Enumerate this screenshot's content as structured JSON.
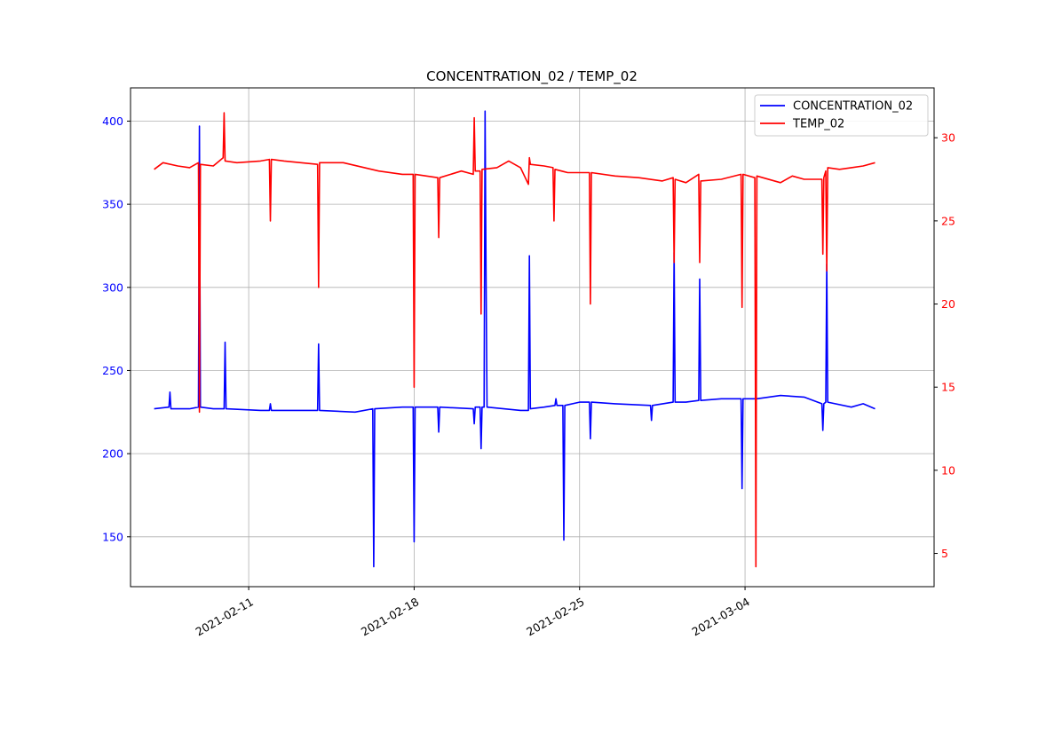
{
  "chart_data": {
    "type": "line",
    "title": "CONCENTRATION_02 / TEMP_02",
    "grid": true,
    "legend_position": "top-right",
    "x_axis": {
      "type": "date",
      "range": [
        "2021-02-06",
        "2021-03-12"
      ],
      "tick_labels": [
        "2021-02-11",
        "2021-02-18",
        "2021-02-25",
        "2021-03-04"
      ]
    },
    "y_left": {
      "range": [
        120,
        420
      ],
      "ticks": [
        150,
        200,
        250,
        300,
        350,
        400
      ],
      "tick_labels": [
        "150",
        "200",
        "250",
        "300",
        "350",
        "400"
      ],
      "color": "#0000ff"
    },
    "y_right": {
      "range": [
        3.0,
        33.0
      ],
      "ticks": [
        5,
        10,
        15,
        20,
        25,
        30
      ],
      "tick_labels": [
        "5",
        "10",
        "15",
        "20",
        "25",
        "30"
      ],
      "color": "#ff0000"
    },
    "series": [
      {
        "name": "CONCENTRATION_02",
        "axis": "left",
        "color": "#0000ff",
        "points": [
          [
            "2021-02-07 00:00",
            227
          ],
          [
            "2021-02-07 15:00",
            228
          ],
          [
            "2021-02-07 16:00",
            237
          ],
          [
            "2021-02-07 17:00",
            227
          ],
          [
            "2021-02-08 12:00",
            227
          ],
          [
            "2021-02-08 21:00",
            228
          ],
          [
            "2021-02-08 22:00",
            397
          ],
          [
            "2021-02-08 23:00",
            228
          ],
          [
            "2021-02-09 12:00",
            227
          ],
          [
            "2021-02-09 23:00",
            227
          ],
          [
            "2021-02-10 00:00",
            267
          ],
          [
            "2021-02-10 01:00",
            227
          ],
          [
            "2021-02-11 12:00",
            226
          ],
          [
            "2021-02-11 21:00",
            226
          ],
          [
            "2021-02-11 22:00",
            230
          ],
          [
            "2021-02-11 23:00",
            226
          ],
          [
            "2021-02-12 12:00",
            226
          ],
          [
            "2021-02-13 22:00",
            226
          ],
          [
            "2021-02-13 23:00",
            266
          ],
          [
            "2021-02-14 00:00",
            226
          ],
          [
            "2021-02-15 12:00",
            225
          ],
          [
            "2021-02-16 06:00",
            227
          ],
          [
            "2021-02-16 07:00",
            132
          ],
          [
            "2021-02-16 08:00",
            227
          ],
          [
            "2021-02-17 12:00",
            228
          ],
          [
            "2021-02-17 23:00",
            228
          ],
          [
            "2021-02-18 00:00",
            147
          ],
          [
            "2021-02-18 01:00",
            228
          ],
          [
            "2021-02-19 00:00",
            228
          ],
          [
            "2021-02-19 01:00",
            213
          ],
          [
            "2021-02-19 02:00",
            228
          ],
          [
            "2021-02-20 12:00",
            227
          ],
          [
            "2021-02-20 13:00",
            218
          ],
          [
            "2021-02-20 14:00",
            228
          ],
          [
            "2021-02-20 19:00",
            228
          ],
          [
            "2021-02-20 20:00",
            203
          ],
          [
            "2021-02-20 21:00",
            228
          ],
          [
            "2021-02-20 23:00",
            228
          ],
          [
            "2021-02-21 00:00",
            406
          ],
          [
            "2021-02-21 01:00",
            307
          ],
          [
            "2021-02-21 02:00",
            228
          ],
          [
            "2021-02-22 12:00",
            226
          ],
          [
            "2021-02-22 20:00",
            226
          ],
          [
            "2021-02-22 21:00",
            319
          ],
          [
            "2021-02-22 22:00",
            227
          ],
          [
            "2021-02-23 12:00",
            228
          ],
          [
            "2021-02-23 23:00",
            229
          ],
          [
            "2021-02-24 00:00",
            233
          ],
          [
            "2021-02-24 01:00",
            229
          ],
          [
            "2021-02-24 07:00",
            229
          ],
          [
            "2021-02-24 08:00",
            148
          ],
          [
            "2021-02-24 09:00",
            229
          ],
          [
            "2021-02-25 00:00",
            231
          ],
          [
            "2021-02-25 10:00",
            231
          ],
          [
            "2021-02-25 11:00",
            209
          ],
          [
            "2021-02-25 12:00",
            231
          ],
          [
            "2021-02-26 12:00",
            230
          ],
          [
            "2021-02-28 00:00",
            229
          ],
          [
            "2021-02-28 01:00",
            220
          ],
          [
            "2021-02-28 02:00",
            229
          ],
          [
            "2021-02-28 23:00",
            231
          ],
          [
            "2021-03-01 00:00",
            321
          ],
          [
            "2021-03-01 01:00",
            231
          ],
          [
            "2021-03-01 12:00",
            231
          ],
          [
            "2021-03-02 01:00",
            232
          ],
          [
            "2021-03-02 02:00",
            305
          ],
          [
            "2021-03-02 03:00",
            232
          ],
          [
            "2021-03-03 00:00",
            233
          ],
          [
            "2021-03-03 20:00",
            233
          ],
          [
            "2021-03-03 21:00",
            179
          ],
          [
            "2021-03-03 22:00",
            233
          ],
          [
            "2021-03-04 12:00",
            233
          ],
          [
            "2021-03-05 12:00",
            235
          ],
          [
            "2021-03-06 12:00",
            234
          ],
          [
            "2021-03-07 06:00",
            230
          ],
          [
            "2021-03-07 07:00",
            214
          ],
          [
            "2021-03-07 08:00",
            230
          ],
          [
            "2021-03-07 10:00",
            231
          ],
          [
            "2021-03-07 11:00",
            314
          ],
          [
            "2021-03-07 12:00",
            231
          ],
          [
            "2021-03-08 12:00",
            228
          ],
          [
            "2021-03-09 00:00",
            230
          ],
          [
            "2021-03-09 12:00",
            227
          ]
        ]
      },
      {
        "name": "TEMP_02",
        "axis": "right",
        "color": "#ff0000",
        "points": [
          [
            "2021-02-07 00:00",
            28.1
          ],
          [
            "2021-02-07 09:00",
            28.5
          ],
          [
            "2021-02-08 00:00",
            28.3
          ],
          [
            "2021-02-08 12:00",
            28.2
          ],
          [
            "2021-02-08 21:00",
            28.5
          ],
          [
            "2021-02-08 22:00",
            13.5
          ],
          [
            "2021-02-08 23:00",
            28.4
          ],
          [
            "2021-02-09 12:00",
            28.3
          ],
          [
            "2021-02-09 22:00",
            28.8
          ],
          [
            "2021-02-09 23:00",
            31.5
          ],
          [
            "2021-02-10 00:00",
            28.6
          ],
          [
            "2021-02-10 12:00",
            28.5
          ],
          [
            "2021-02-11 12:00",
            28.6
          ],
          [
            "2021-02-11 21:00",
            28.7
          ],
          [
            "2021-02-11 22:00",
            25.0
          ],
          [
            "2021-02-11 23:00",
            28.7
          ],
          [
            "2021-02-12 12:00",
            28.6
          ],
          [
            "2021-02-13 22:00",
            28.4
          ],
          [
            "2021-02-13 23:00",
            21.0
          ],
          [
            "2021-02-14 00:00",
            28.5
          ],
          [
            "2021-02-15 00:00",
            28.5
          ],
          [
            "2021-02-16 12:00",
            28.0
          ],
          [
            "2021-02-17 12:00",
            27.8
          ],
          [
            "2021-02-17 23:00",
            27.8
          ],
          [
            "2021-02-18 00:00",
            15.0
          ],
          [
            "2021-02-18 01:00",
            27.8
          ],
          [
            "2021-02-19 00:00",
            27.6
          ],
          [
            "2021-02-19 01:00",
            24.0
          ],
          [
            "2021-02-19 02:00",
            27.6
          ],
          [
            "2021-02-20 00:00",
            28.0
          ],
          [
            "2021-02-20 12:00",
            27.8
          ],
          [
            "2021-02-20 13:00",
            31.2
          ],
          [
            "2021-02-20 14:00",
            28.0
          ],
          [
            "2021-02-20 19:00",
            28.0
          ],
          [
            "2021-02-20 20:00",
            19.4
          ],
          [
            "2021-02-20 21:00",
            28.1
          ],
          [
            "2021-02-21 12:00",
            28.2
          ],
          [
            "2021-02-22 00:00",
            28.6
          ],
          [
            "2021-02-22 12:00",
            28.2
          ],
          [
            "2021-02-22 20:00",
            27.2
          ],
          [
            "2021-02-22 21:00",
            28.8
          ],
          [
            "2021-02-22 22:00",
            28.4
          ],
          [
            "2021-02-23 12:00",
            28.3
          ],
          [
            "2021-02-23 21:00",
            28.2
          ],
          [
            "2021-02-23 22:00",
            25.0
          ],
          [
            "2021-02-23 23:00",
            28.1
          ],
          [
            "2021-02-24 12:00",
            27.9
          ],
          [
            "2021-02-25 10:00",
            27.9
          ],
          [
            "2021-02-25 11:00",
            20.0
          ],
          [
            "2021-02-25 12:00",
            27.9
          ],
          [
            "2021-02-26 12:00",
            27.7
          ],
          [
            "2021-02-27 12:00",
            27.6
          ],
          [
            "2021-02-28 12:00",
            27.4
          ],
          [
            "2021-02-28 23:00",
            27.6
          ],
          [
            "2021-03-01 00:00",
            22.5
          ],
          [
            "2021-03-01 01:00",
            27.5
          ],
          [
            "2021-03-01 12:00",
            27.3
          ],
          [
            "2021-03-02 01:00",
            27.8
          ],
          [
            "2021-03-02 02:00",
            22.5
          ],
          [
            "2021-03-02 03:00",
            27.4
          ],
          [
            "2021-03-03 00:00",
            27.5
          ],
          [
            "2021-03-03 20:00",
            27.8
          ],
          [
            "2021-03-03 21:00",
            19.8
          ],
          [
            "2021-03-03 22:00",
            27.8
          ],
          [
            "2021-03-04 10:00",
            27.6
          ],
          [
            "2021-03-04 11:00",
            4.2
          ],
          [
            "2021-03-04 12:00",
            27.7
          ],
          [
            "2021-03-05 12:00",
            27.3
          ],
          [
            "2021-03-06 00:00",
            27.7
          ],
          [
            "2021-03-06 12:00",
            27.5
          ],
          [
            "2021-03-07 06:00",
            27.5
          ],
          [
            "2021-03-07 07:00",
            23.0
          ],
          [
            "2021-03-07 08:00",
            27.6
          ],
          [
            "2021-03-07 10:00",
            28.0
          ],
          [
            "2021-03-07 11:00",
            22.0
          ],
          [
            "2021-03-07 12:00",
            28.2
          ],
          [
            "2021-03-08 00:00",
            28.1
          ],
          [
            "2021-03-08 12:00",
            28.2
          ],
          [
            "2021-03-09 00:00",
            28.3
          ],
          [
            "2021-03-09 12:00",
            28.5
          ]
        ]
      }
    ]
  }
}
